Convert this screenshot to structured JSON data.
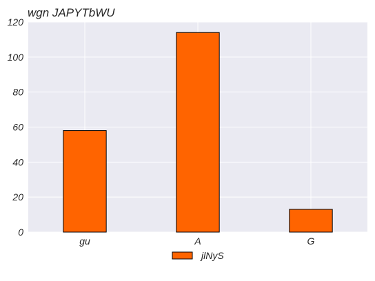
{
  "chart_data": {
    "type": "bar",
    "title": "wgn JAPYTbWU",
    "xlabel": "",
    "ylabel": "",
    "categories": [
      "gu",
      "A",
      "G"
    ],
    "series": [
      {
        "name": "jlNyS",
        "values": [
          58,
          114,
          13
        ]
      }
    ],
    "ylim": [
      0,
      120
    ],
    "yticks": [
      0,
      20,
      40,
      60,
      80,
      100,
      120
    ],
    "grid": true,
    "legend_position": "bottom-center",
    "colors": {
      "bar_fill": "#ff6400",
      "bar_edge": "#000000",
      "plot_background": "#eaeaf2",
      "gridline": "#ffffff",
      "text": "#262626"
    }
  }
}
